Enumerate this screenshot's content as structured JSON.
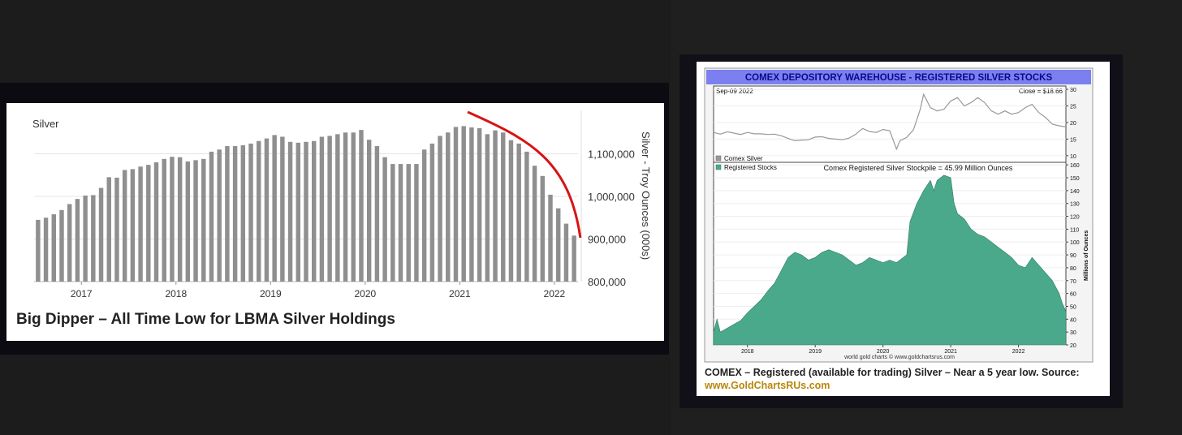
{
  "chart_data": [
    {
      "type": "bar",
      "title": "Silver",
      "ylabel": "Silver - Troy Ounces (000s)",
      "xlabel": "",
      "ylim": [
        800000,
        1200000
      ],
      "yticks": [
        "1,100,000",
        "1,000,000",
        "900,000",
        "800,000"
      ],
      "ytick_values": [
        1100000,
        1000000,
        900000,
        800000
      ],
      "xticks": [
        "2017",
        "2018",
        "2019",
        "2020",
        "2021",
        "2022"
      ],
      "x_start": 2016.5,
      "x_step": 0.08333,
      "values": [
        945000,
        950000,
        958000,
        968000,
        982000,
        994000,
        1002000,
        1003000,
        1020000,
        1045000,
        1044000,
        1062000,
        1064000,
        1070000,
        1074000,
        1080000,
        1088000,
        1093000,
        1092000,
        1082000,
        1085000,
        1088000,
        1105000,
        1110000,
        1118000,
        1118000,
        1120000,
        1124000,
        1130000,
        1136000,
        1144000,
        1140000,
        1128000,
        1126000,
        1128000,
        1130000,
        1140000,
        1142000,
        1146000,
        1150000,
        1150000,
        1156000,
        1133000,
        1118000,
        1092000,
        1076000,
        1076000,
        1076000,
        1076000,
        1110000,
        1124000,
        1142000,
        1150000,
        1163000,
        1165000,
        1162000,
        1160000,
        1146000,
        1155000,
        1150000,
        1132000,
        1124000,
        1105000,
        1072000,
        1048000,
        1004000,
        972000,
        936000,
        908000
      ],
      "caption": "Big Dipper – All Time Low for LBMA Silver Holdings",
      "annotation_color": "#d81414",
      "bar_color": "#8f8f8f"
    },
    {
      "type": "area",
      "banner": "COMEX DEPOSITORY WAREHOUSE - REGISTERED SILVER STOCKS",
      "date_label": "Sep-09  2022",
      "close_label": "Close = $18.66",
      "top_series_name": "Comex Silver",
      "bottom_series_name": "Registered Stocks",
      "stockpile_label": "Comex Registered Silver Stockpile = 45.99 Million Ounces",
      "ylabel": "Millions of Ounces",
      "credit": "world gold charts © www.goldchartsrus.com",
      "xticks": [
        "2018",
        "2019",
        "2020",
        "2021",
        "2022"
      ],
      "top_yticks": [
        30,
        25,
        20,
        15,
        10
      ],
      "top_ylim": [
        8,
        31
      ],
      "bottom_yticks": [
        160,
        150,
        140,
        130,
        120,
        110,
        100,
        90,
        80,
        70,
        60,
        50,
        40,
        30,
        20
      ],
      "bottom_ylim": [
        20,
        162
      ],
      "x_range": [
        2017.5,
        2022.7
      ],
      "silver_price": [
        [
          2017.5,
          17.0
        ],
        [
          2017.6,
          16.5
        ],
        [
          2017.7,
          17.2
        ],
        [
          2017.8,
          16.8
        ],
        [
          2017.9,
          16.4
        ],
        [
          2018.0,
          17.0
        ],
        [
          2018.1,
          16.6
        ],
        [
          2018.2,
          16.6
        ],
        [
          2018.3,
          16.4
        ],
        [
          2018.4,
          16.5
        ],
        [
          2018.5,
          16.0
        ],
        [
          2018.6,
          15.2
        ],
        [
          2018.7,
          14.5
        ],
        [
          2018.8,
          14.7
        ],
        [
          2018.9,
          14.8
        ],
        [
          2019.0,
          15.6
        ],
        [
          2019.1,
          15.7
        ],
        [
          2019.2,
          15.2
        ],
        [
          2019.3,
          15.0
        ],
        [
          2019.4,
          14.8
        ],
        [
          2019.5,
          15.3
        ],
        [
          2019.6,
          16.5
        ],
        [
          2019.7,
          18.2
        ],
        [
          2019.8,
          17.3
        ],
        [
          2019.9,
          17.0
        ],
        [
          2020.0,
          17.9
        ],
        [
          2020.1,
          17.5
        ],
        [
          2020.2,
          12.0
        ],
        [
          2020.25,
          14.5
        ],
        [
          2020.35,
          15.5
        ],
        [
          2020.45,
          17.8
        ],
        [
          2020.55,
          24.0
        ],
        [
          2020.6,
          28.5
        ],
        [
          2020.7,
          24.5
        ],
        [
          2020.8,
          23.5
        ],
        [
          2020.9,
          24.0
        ],
        [
          2021.0,
          26.5
        ],
        [
          2021.1,
          27.5
        ],
        [
          2021.2,
          25.0
        ],
        [
          2021.3,
          26.0
        ],
        [
          2021.4,
          27.5
        ],
        [
          2021.5,
          26.0
        ],
        [
          2021.6,
          23.5
        ],
        [
          2021.7,
          22.5
        ],
        [
          2021.8,
          23.5
        ],
        [
          2021.9,
          22.5
        ],
        [
          2022.0,
          23.0
        ],
        [
          2022.1,
          24.5
        ],
        [
          2022.2,
          25.5
        ],
        [
          2022.3,
          23.0
        ],
        [
          2022.4,
          21.5
        ],
        [
          2022.5,
          19.5
        ],
        [
          2022.6,
          19.0
        ],
        [
          2022.7,
          18.66
        ]
      ],
      "registered_stocks": [
        [
          2017.5,
          30
        ],
        [
          2017.55,
          40
        ],
        [
          2017.6,
          30
        ],
        [
          2017.7,
          33
        ],
        [
          2017.8,
          36
        ],
        [
          2017.9,
          39
        ],
        [
          2018.0,
          45
        ],
        [
          2018.1,
          50
        ],
        [
          2018.2,
          55
        ],
        [
          2018.3,
          62
        ],
        [
          2018.4,
          68
        ],
        [
          2018.5,
          78
        ],
        [
          2018.6,
          88
        ],
        [
          2018.7,
          92
        ],
        [
          2018.8,
          90
        ],
        [
          2018.9,
          86
        ],
        [
          2019.0,
          88
        ],
        [
          2019.1,
          92
        ],
        [
          2019.2,
          94
        ],
        [
          2019.3,
          92
        ],
        [
          2019.4,
          90
        ],
        [
          2019.5,
          86
        ],
        [
          2019.6,
          82
        ],
        [
          2019.7,
          84
        ],
        [
          2019.8,
          88
        ],
        [
          2019.9,
          86
        ],
        [
          2020.0,
          84
        ],
        [
          2020.1,
          86
        ],
        [
          2020.2,
          84
        ],
        [
          2020.3,
          88
        ],
        [
          2020.35,
          90
        ],
        [
          2020.4,
          116
        ],
        [
          2020.5,
          130
        ],
        [
          2020.6,
          140
        ],
        [
          2020.7,
          148
        ],
        [
          2020.75,
          140
        ],
        [
          2020.8,
          148
        ],
        [
          2020.9,
          152
        ],
        [
          2021.0,
          150
        ],
        [
          2021.05,
          130
        ],
        [
          2021.1,
          122
        ],
        [
          2021.2,
          118
        ],
        [
          2021.3,
          110
        ],
        [
          2021.4,
          106
        ],
        [
          2021.5,
          104
        ],
        [
          2021.6,
          100
        ],
        [
          2021.7,
          96
        ],
        [
          2021.8,
          92
        ],
        [
          2021.9,
          88
        ],
        [
          2022.0,
          82
        ],
        [
          2022.1,
          80
        ],
        [
          2022.2,
          88
        ],
        [
          2022.3,
          82
        ],
        [
          2022.4,
          76
        ],
        [
          2022.5,
          70
        ],
        [
          2022.6,
          60
        ],
        [
          2022.65,
          52
        ],
        [
          2022.7,
          45.99
        ]
      ],
      "caption": "COMEX – Registered (available for trading) Silver – Near a 5 year low. Source:",
      "source": "www.GoldChartsRUs.com",
      "area_color": "#4aa98a",
      "line_color": "#999999",
      "banner_color": "#7b7ff0"
    }
  ]
}
